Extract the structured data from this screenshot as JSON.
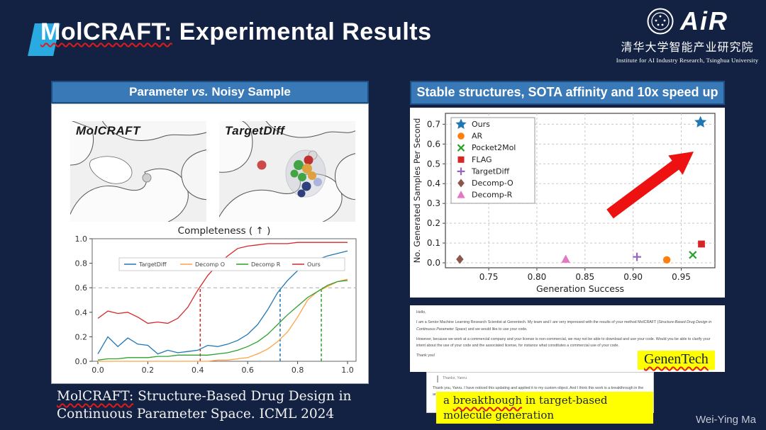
{
  "slide": {
    "title_molcraft": "MolCRAFT:",
    "title_rest": " Experimental Results",
    "author": "Wei-Ying Ma"
  },
  "logo": {
    "air_text": "AiR",
    "cn_line": "清华大学智能产业研究院",
    "en_line": "Institute for AI Industry Research,  Tsinghua University"
  },
  "left_panel": {
    "header_pre": "Parameter ",
    "header_vs": "vs.",
    "header_post": " Noisy Sample",
    "image_left_label": "MolCRAFT",
    "image_right_label": "TargetDiff"
  },
  "right_panel": {
    "header": "Stable structures, SOTA affinity and 10x speed up"
  },
  "email": {
    "greeting": "Hello,",
    "para1_pre": "I am a Senior Machine Learning Research Scientist at Genentech. My team and I are very impressed with the results of your method MolCRAFT (",
    "para1_italic": "Structure-Based Drug Design in Continuous Parameter Space",
    "para1_post": ") and we would like to use your code.",
    "para2": "However, because we work at a commercial company and your license is non-commercial, we may not be able to download and use your code. Would you be able to clarify your intent about the use of your code and the associated license, for instance what constitutes a commercial use of your code.",
    "closing": "Thank you!",
    "genentech_label": "GenenTech",
    "quote": "Thanks, Yanru",
    "reply": "Thank you, Yanru. I have noticed this updating and applied it to my custom object. And I think this work is a breakthrough in the area of pocket-based molecular generation. Congratulations!!",
    "note_pre": "a ",
    "note_wavy": "breakthough",
    "note_post": " in target-based molecule generation"
  },
  "citation": {
    "highlight": "MolCRAFT:",
    "rest": " Structure-Based Drug Design in Continuous Parameter Space. ICML 2024"
  },
  "colors": {
    "background": "#132142",
    "header_bar": "#3a79b7",
    "header_border": "#1d4e80",
    "accent_blue": "#29abe2",
    "highlight_yellow": "#ffff00",
    "wavy_red": "#e01b1b",
    "arrow_red": "#ee1111"
  },
  "chart_data": [
    {
      "type": "line",
      "title": "Completeness ( ↑ )",
      "xlabel": "",
      "ylabel": "",
      "xlim": [
        0,
        1.0
      ],
      "ylim": [
        0,
        1.0
      ],
      "xticks": [
        0.0,
        0.2,
        0.4,
        0.6,
        0.8,
        1.0
      ],
      "yticks": [
        0.0,
        0.2,
        0.4,
        0.6,
        0.8,
        1.0
      ],
      "grid": false,
      "legend_position": "upper-center-row",
      "hline": 0.6,
      "vlines": [
        {
          "x": 0.41,
          "color": "#d62728"
        },
        {
          "x": 0.73,
          "color": "#1f77b4"
        },
        {
          "x": 0.895,
          "color": "#2ca02c"
        }
      ],
      "x": [
        0,
        0.04,
        0.08,
        0.12,
        0.16,
        0.2,
        0.24,
        0.28,
        0.32,
        0.36,
        0.4,
        0.44,
        0.48,
        0.52,
        0.56,
        0.6,
        0.64,
        0.68,
        0.72,
        0.76,
        0.8,
        0.84,
        0.88,
        0.92,
        0.96,
        1.0
      ],
      "series": [
        {
          "name": "TargetDiff",
          "color": "#1f77b4",
          "values": [
            0.06,
            0.2,
            0.12,
            0.19,
            0.14,
            0.13,
            0.06,
            0.09,
            0.07,
            0.08,
            0.09,
            0.13,
            0.12,
            0.14,
            0.17,
            0.22,
            0.3,
            0.42,
            0.56,
            0.66,
            0.74,
            0.81,
            0.83,
            0.86,
            0.88,
            0.9
          ]
        },
        {
          "name": "Decomp O",
          "color": "#ffa245",
          "values": [
            0.0,
            0.0,
            0.0,
            0.0,
            0.0,
            0.0,
            0.0,
            0.0,
            0.0,
            0.0,
            0.0,
            0.0,
            0.01,
            0.01,
            0.02,
            0.03,
            0.06,
            0.1,
            0.16,
            0.24,
            0.36,
            0.5,
            0.57,
            0.61,
            0.65,
            0.67
          ]
        },
        {
          "name": "Decomp R",
          "color": "#2ca02c",
          "values": [
            0.01,
            0.02,
            0.02,
            0.03,
            0.03,
            0.03,
            0.04,
            0.04,
            0.05,
            0.05,
            0.05,
            0.05,
            0.06,
            0.07,
            0.09,
            0.12,
            0.16,
            0.22,
            0.3,
            0.38,
            0.45,
            0.52,
            0.57,
            0.62,
            0.65,
            0.66
          ]
        },
        {
          "name": "Ours",
          "color": "#d62728",
          "values": [
            0.35,
            0.41,
            0.39,
            0.4,
            0.36,
            0.31,
            0.32,
            0.31,
            0.35,
            0.44,
            0.58,
            0.7,
            0.79,
            0.86,
            0.92,
            0.94,
            0.95,
            0.96,
            0.96,
            0.96,
            0.97,
            0.97,
            0.97,
            0.97,
            0.97,
            0.97
          ]
        }
      ]
    },
    {
      "type": "scatter",
      "title": "",
      "xlabel": "Generation Success",
      "ylabel": "No. Generated Samples Per Second",
      "xlim": [
        0.705,
        0.985
      ],
      "ylim": [
        -0.025,
        0.755
      ],
      "xticks": [
        0.75,
        0.8,
        0.85,
        0.9,
        0.95
      ],
      "yticks": [
        0.0,
        0.1,
        0.2,
        0.3,
        0.4,
        0.5,
        0.6,
        0.7
      ],
      "grid": true,
      "legend_position": "upper-left",
      "points": [
        {
          "name": "Ours",
          "marker": "star",
          "color": "#1f77b4",
          "x": 0.97,
          "y": 0.71
        },
        {
          "name": "AR",
          "marker": "circle",
          "color": "#ff7f0e",
          "x": 0.935,
          "y": 0.015
        },
        {
          "name": "Pocket2Mol",
          "marker": "x",
          "color": "#2ca02c",
          "x": 0.962,
          "y": 0.04
        },
        {
          "name": "FLAG",
          "marker": "square",
          "color": "#d62728",
          "x": 0.971,
          "y": 0.095
        },
        {
          "name": "TargetDiff",
          "marker": "plus",
          "color": "#9467bd",
          "x": 0.904,
          "y": 0.03
        },
        {
          "name": "Decomp-O",
          "marker": "diamond",
          "color": "#8c564b",
          "x": 0.72,
          "y": 0.018
        },
        {
          "name": "Decomp-R",
          "marker": "triangle",
          "color": "#e377c2",
          "x": 0.83,
          "y": 0.018
        }
      ]
    }
  ]
}
